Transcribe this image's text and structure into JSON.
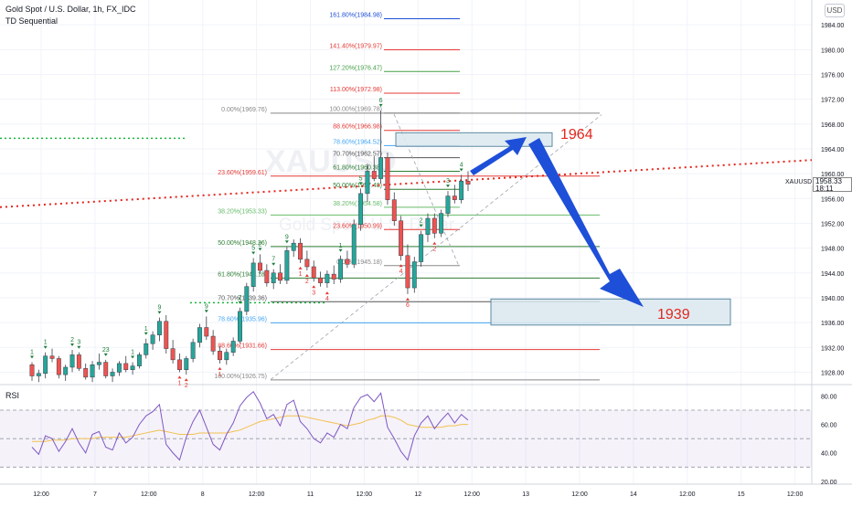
{
  "header": {
    "title": "Gold Spot / U.S. Dollar, 1h, FX_IDC",
    "indicator": "TD Sequential",
    "currency_button": "USD",
    "rsi_label": "RSI",
    "watermark_symbol": "XAUUSD",
    "watermark_name": "Gold Spot / U.S. Dollar"
  },
  "price_tag": {
    "symbol": "XAUUSD",
    "price": "1958.33",
    "countdown": "18:11"
  },
  "colors": {
    "up": "#26a69a",
    "down": "#ef5350",
    "annotation_red": "#e2261d",
    "arrow_blue": "#1e4fd8",
    "box_fill": "#dbe8ee",
    "box_stroke": "#5d8aa0",
    "rsi": "#7e57c2",
    "rsi_ma": "#f2c14e",
    "td_green": "#1e7d3a",
    "td_red": "#e53935"
  },
  "chart_data": [
    {
      "type": "candlestick",
      "x_axis": {
        "kind": "time",
        "labels": [
          "12:00",
          "7",
          "12:00",
          "8",
          "12:00",
          "11",
          "12:00",
          "12",
          "12:00",
          "13",
          "12:00",
          "14",
          "12:00",
          "15",
          "12:00"
        ]
      },
      "y_axis": {
        "range": [
          1926,
          1988
        ],
        "ticks": [
          1928,
          1932,
          1936,
          1940,
          1944,
          1948,
          1952,
          1956,
          1960,
          1964,
          1968,
          1972,
          1976,
          1980,
          1984
        ],
        "tick_labels": [
          "1928.00",
          "1932.00",
          "1936.00",
          "1940.00",
          "1944.00",
          "1948.00",
          "1952.00",
          "1956.00",
          "1960.00",
          "1964.00",
          "1968.00",
          "1972.00",
          "1976.00",
          "1980.00",
          "1984.00"
        ],
        "scale": "linear",
        "position": "right"
      },
      "last_price": 1958.33,
      "candles_ohlc": [
        [
          1929.2,
          1929.6,
          1926.6,
          1927.4
        ],
        [
          1927.4,
          1928.4,
          1926.4,
          1927.8
        ],
        [
          1927.8,
          1931.2,
          1927.0,
          1930.6
        ],
        [
          1930.6,
          1931.8,
          1929.6,
          1930.2
        ],
        [
          1930.2,
          1930.6,
          1927.0,
          1927.6
        ],
        [
          1927.6,
          1929.2,
          1926.6,
          1928.8
        ],
        [
          1928.8,
          1931.6,
          1928.0,
          1930.8
        ],
        [
          1930.8,
          1931.2,
          1928.2,
          1928.6
        ],
        [
          1928.6,
          1929.4,
          1926.8,
          1927.2
        ],
        [
          1927.2,
          1929.8,
          1926.4,
          1929.2
        ],
        [
          1929.2,
          1931.0,
          1928.4,
          1929.6
        ],
        [
          1929.6,
          1930.0,
          1927.0,
          1927.4
        ],
        [
          1927.4,
          1928.6,
          1926.4,
          1928.0
        ],
        [
          1928.0,
          1929.8,
          1927.4,
          1929.4
        ],
        [
          1929.4,
          1930.6,
          1928.0,
          1928.4
        ],
        [
          1928.4,
          1929.6,
          1927.6,
          1929.0
        ],
        [
          1929.0,
          1931.2,
          1928.6,
          1930.8
        ],
        [
          1930.8,
          1933.4,
          1930.2,
          1932.6
        ],
        [
          1932.6,
          1934.6,
          1931.6,
          1934.0
        ],
        [
          1934.0,
          1936.8,
          1933.0,
          1936.2
        ],
        [
          1936.2,
          1937.2,
          1931.0,
          1931.8
        ],
        [
          1931.8,
          1933.2,
          1929.4,
          1930.0
        ],
        [
          1930.0,
          1931.0,
          1928.0,
          1928.4
        ],
        [
          1928.4,
          1930.6,
          1927.6,
          1930.2
        ],
        [
          1930.2,
          1933.4,
          1929.6,
          1932.8
        ],
        [
          1932.8,
          1935.8,
          1932.0,
          1935.2
        ],
        [
          1935.2,
          1937.0,
          1933.2,
          1933.8
        ],
        [
          1933.8,
          1934.8,
          1930.8,
          1931.4
        ],
        [
          1931.4,
          1932.2,
          1929.4,
          1930.0
        ],
        [
          1930.0,
          1931.8,
          1929.2,
          1931.2
        ],
        [
          1931.2,
          1933.6,
          1930.6,
          1933.0
        ],
        [
          1933.0,
          1938.4,
          1932.6,
          1937.8
        ],
        [
          1937.8,
          1942.4,
          1937.2,
          1941.8
        ],
        [
          1941.8,
          1946.4,
          1941.0,
          1945.6
        ],
        [
          1945.6,
          1947.0,
          1943.8,
          1944.4
        ],
        [
          1944.4,
          1945.4,
          1941.8,
          1942.4
        ],
        [
          1942.4,
          1944.6,
          1941.4,
          1944.0
        ],
        [
          1944.0,
          1945.4,
          1942.2,
          1942.8
        ],
        [
          1942.8,
          1948.2,
          1942.2,
          1947.6
        ],
        [
          1947.6,
          1949.4,
          1946.6,
          1948.8
        ],
        [
          1948.8,
          1949.6,
          1945.6,
          1946.2
        ],
        [
          1946.2,
          1947.6,
          1944.4,
          1945.0
        ],
        [
          1945.0,
          1946.0,
          1942.6,
          1943.2
        ],
        [
          1943.2,
          1944.2,
          1941.8,
          1942.4
        ],
        [
          1942.4,
          1944.4,
          1941.6,
          1943.8
        ],
        [
          1943.8,
          1945.2,
          1942.2,
          1943.0
        ],
        [
          1943.0,
          1946.8,
          1942.4,
          1946.2
        ],
        [
          1946.2,
          1947.6,
          1944.8,
          1945.4
        ],
        [
          1945.4,
          1952.6,
          1944.8,
          1951.8
        ],
        [
          1951.8,
          1957.6,
          1950.8,
          1956.8
        ],
        [
          1956.8,
          1961.6,
          1955.4,
          1960.4
        ],
        [
          1960.4,
          1962.8,
          1958.8,
          1959.2
        ],
        [
          1959.2,
          1970.2,
          1958.4,
          1962.6
        ],
        [
          1962.6,
          1963.4,
          1955.0,
          1955.8
        ],
        [
          1955.8,
          1957.0,
          1951.6,
          1952.4
        ],
        [
          1952.4,
          1953.2,
          1946.0,
          1946.8
        ],
        [
          1946.8,
          1948.6,
          1940.6,
          1941.6
        ],
        [
          1941.6,
          1946.6,
          1940.8,
          1945.8
        ],
        [
          1945.8,
          1950.8,
          1945.0,
          1950.2
        ],
        [
          1950.2,
          1953.6,
          1949.0,
          1952.8
        ],
        [
          1952.8,
          1953.6,
          1949.6,
          1950.4
        ],
        [
          1950.4,
          1954.2,
          1949.8,
          1953.6
        ],
        [
          1953.6,
          1957.2,
          1953.0,
          1956.4
        ],
        [
          1956.4,
          1958.2,
          1955.2,
          1955.8
        ],
        [
          1955.8,
          1959.8,
          1955.2,
          1958.8
        ],
        [
          1958.8,
          1960.4,
          1957.2,
          1958.3
        ]
      ]
    },
    {
      "type": "line",
      "name": "RSI",
      "y_axis": {
        "range": [
          18,
          88
        ],
        "ticks": [
          20,
          40,
          60,
          80
        ],
        "tick_labels": [
          "20.00",
          "40.00",
          "60.00",
          "80.00"
        ]
      },
      "bands": [
        30,
        50,
        70
      ],
      "rsi": [
        44,
        39,
        52,
        50,
        41,
        48,
        57,
        47,
        40,
        53,
        55,
        44,
        42,
        54,
        47,
        51,
        60,
        66,
        69,
        74,
        46,
        40,
        35,
        51,
        62,
        70,
        58,
        46,
        42,
        53,
        61,
        73,
        79,
        83,
        75,
        64,
        67,
        59,
        74,
        77,
        62,
        57,
        50,
        47,
        54,
        51,
        60,
        57,
        72,
        79,
        81,
        76,
        82,
        58,
        50,
        41,
        35,
        52,
        61,
        66,
        57,
        63,
        68,
        61,
        67,
        63
      ],
      "rsi_ma": [
        48,
        48,
        48,
        49,
        49,
        49,
        50,
        50,
        50,
        50,
        51,
        51,
        51,
        51,
        51,
        52,
        53,
        54,
        55,
        56,
        55,
        54,
        53,
        53,
        53,
        54,
        54,
        54,
        54,
        54,
        55,
        56,
        58,
        60,
        62,
        63,
        64,
        65,
        66,
        66,
        66,
        65,
        64,
        63,
        62,
        61,
        60,
        59,
        60,
        61,
        63,
        64,
        66,
        66,
        65,
        63,
        60,
        59,
        58,
        58,
        58,
        58,
        59,
        59,
        60,
        60
      ]
    }
  ],
  "fibonacci_left": [
    {
      "label": "0.00%(1969.76)",
      "value": 1969.76,
      "color": "#888888"
    },
    {
      "label": "23.60%(1959.61)",
      "value": 1959.61,
      "color": "#e53935"
    },
    {
      "label": "38.20%(1953.33)",
      "value": 1953.33,
      "color": "#66bb6a"
    },
    {
      "label": "50.00%(1948.26)",
      "value": 1948.26,
      "color": "#2e7d32"
    },
    {
      "label": "61.80%(1943.18)",
      "value": 1943.18,
      "color": "#2e7d32"
    },
    {
      "label": "70.70%(1939.36)",
      "value": 1939.36,
      "color": "#555555"
    },
    {
      "label": "78.60%(1935.96)",
      "value": 1935.96,
      "color": "#42a5f5"
    },
    {
      "label": "88.60%(1931.66)",
      "value": 1931.66,
      "color": "#e53935"
    },
    {
      "label": "100.00%(1926.75)",
      "value": 1926.75,
      "color": "#888888"
    }
  ],
  "fibonacci_right": [
    {
      "label": "161.80%(1984.98)",
      "value": 1984.98,
      "color": "#1e4fd8"
    },
    {
      "label": "141.40%(1979.97)",
      "value": 1979.97,
      "color": "#e53935"
    },
    {
      "label": "127.20%(1976.47)",
      "value": 1976.47,
      "color": "#43a047"
    },
    {
      "label": "113.00%(1972.98)",
      "value": 1972.98,
      "color": "#e53935"
    },
    {
      "label": "100.00%(1969.78)",
      "value": 1969.78,
      "color": "#888888"
    },
    {
      "label": "88.60%(1966.98)",
      "value": 1966.98,
      "color": "#e53935"
    },
    {
      "label": "78.60%(1964.52)",
      "value": 1964.52,
      "color": "#42a5f5"
    },
    {
      "label": "70.70%(1962.57)",
      "value": 1962.57,
      "color": "#555555"
    },
    {
      "label": "61.80%(1960.38)",
      "value": 1960.38,
      "color": "#2e7d32"
    },
    {
      "label": "50.00%(1957.48)",
      "value": 1957.48,
      "color": "#2e7d32"
    },
    {
      "label": "38.20%(1954.58)",
      "value": 1954.58,
      "color": "#66bb6a"
    },
    {
      "label": "23.60%(1950.99)",
      "value": 1950.99,
      "color": "#e53935"
    },
    {
      "label": "0.00%(1945.18)",
      "value": 1945.18,
      "color": "#888888"
    }
  ],
  "annotations": {
    "upper_target": "1964",
    "lower_target": "1939",
    "upper_zone": [
      1964.4,
      1966.6
    ],
    "lower_zone": [
      1935.6,
      1939.8
    ],
    "upper_dotted_level": 1965.7,
    "lower_dotted_level": 1939.2
  },
  "td_counts": [
    {
      "i": 0,
      "t": "1",
      "d": "up"
    },
    {
      "i": 2,
      "t": "1",
      "d": "up"
    },
    {
      "i": 6,
      "t": "2",
      "d": "up"
    },
    {
      "i": 7,
      "t": "3",
      "d": "up"
    },
    {
      "i": 11,
      "t": "23",
      "d": "up"
    },
    {
      "i": 15,
      "t": "1",
      "d": "up"
    },
    {
      "i": 17,
      "t": "1",
      "d": "up"
    },
    {
      "i": 19,
      "t": "9",
      "d": "up"
    },
    {
      "i": 22,
      "t": "1",
      "d": "dn"
    },
    {
      "i": 23,
      "t": "2",
      "d": "dn"
    },
    {
      "i": 26,
      "t": "9",
      "d": "up"
    },
    {
      "i": 28,
      "t": "1",
      "d": "dn"
    },
    {
      "i": 31,
      "t": "2",
      "d": "up"
    },
    {
      "i": 33,
      "t": "5",
      "d": "up"
    },
    {
      "i": 34,
      "t": "2",
      "d": "up"
    },
    {
      "i": 36,
      "t": "7",
      "d": "up"
    },
    {
      "i": 38,
      "t": "9",
      "d": "up"
    },
    {
      "i": 40,
      "t": "1",
      "d": "dn"
    },
    {
      "i": 41,
      "t": "2",
      "d": "dn"
    },
    {
      "i": 42,
      "t": "3",
      "d": "dn"
    },
    {
      "i": 44,
      "t": "4",
      "d": "dn"
    },
    {
      "i": 46,
      "t": "1",
      "d": "up"
    },
    {
      "i": 49,
      "t": "5",
      "d": "up"
    },
    {
      "i": 52,
      "t": "6",
      "d": "up"
    },
    {
      "i": 55,
      "t": "4",
      "d": "dn"
    },
    {
      "i": 56,
      "t": "6",
      "d": "dn"
    },
    {
      "i": 58,
      "t": "2",
      "d": "up"
    },
    {
      "i": 60,
      "t": "2",
      "d": "dn"
    },
    {
      "i": 62,
      "t": "3",
      "d": "up"
    },
    {
      "i": 64,
      "t": "4",
      "d": "up"
    }
  ]
}
